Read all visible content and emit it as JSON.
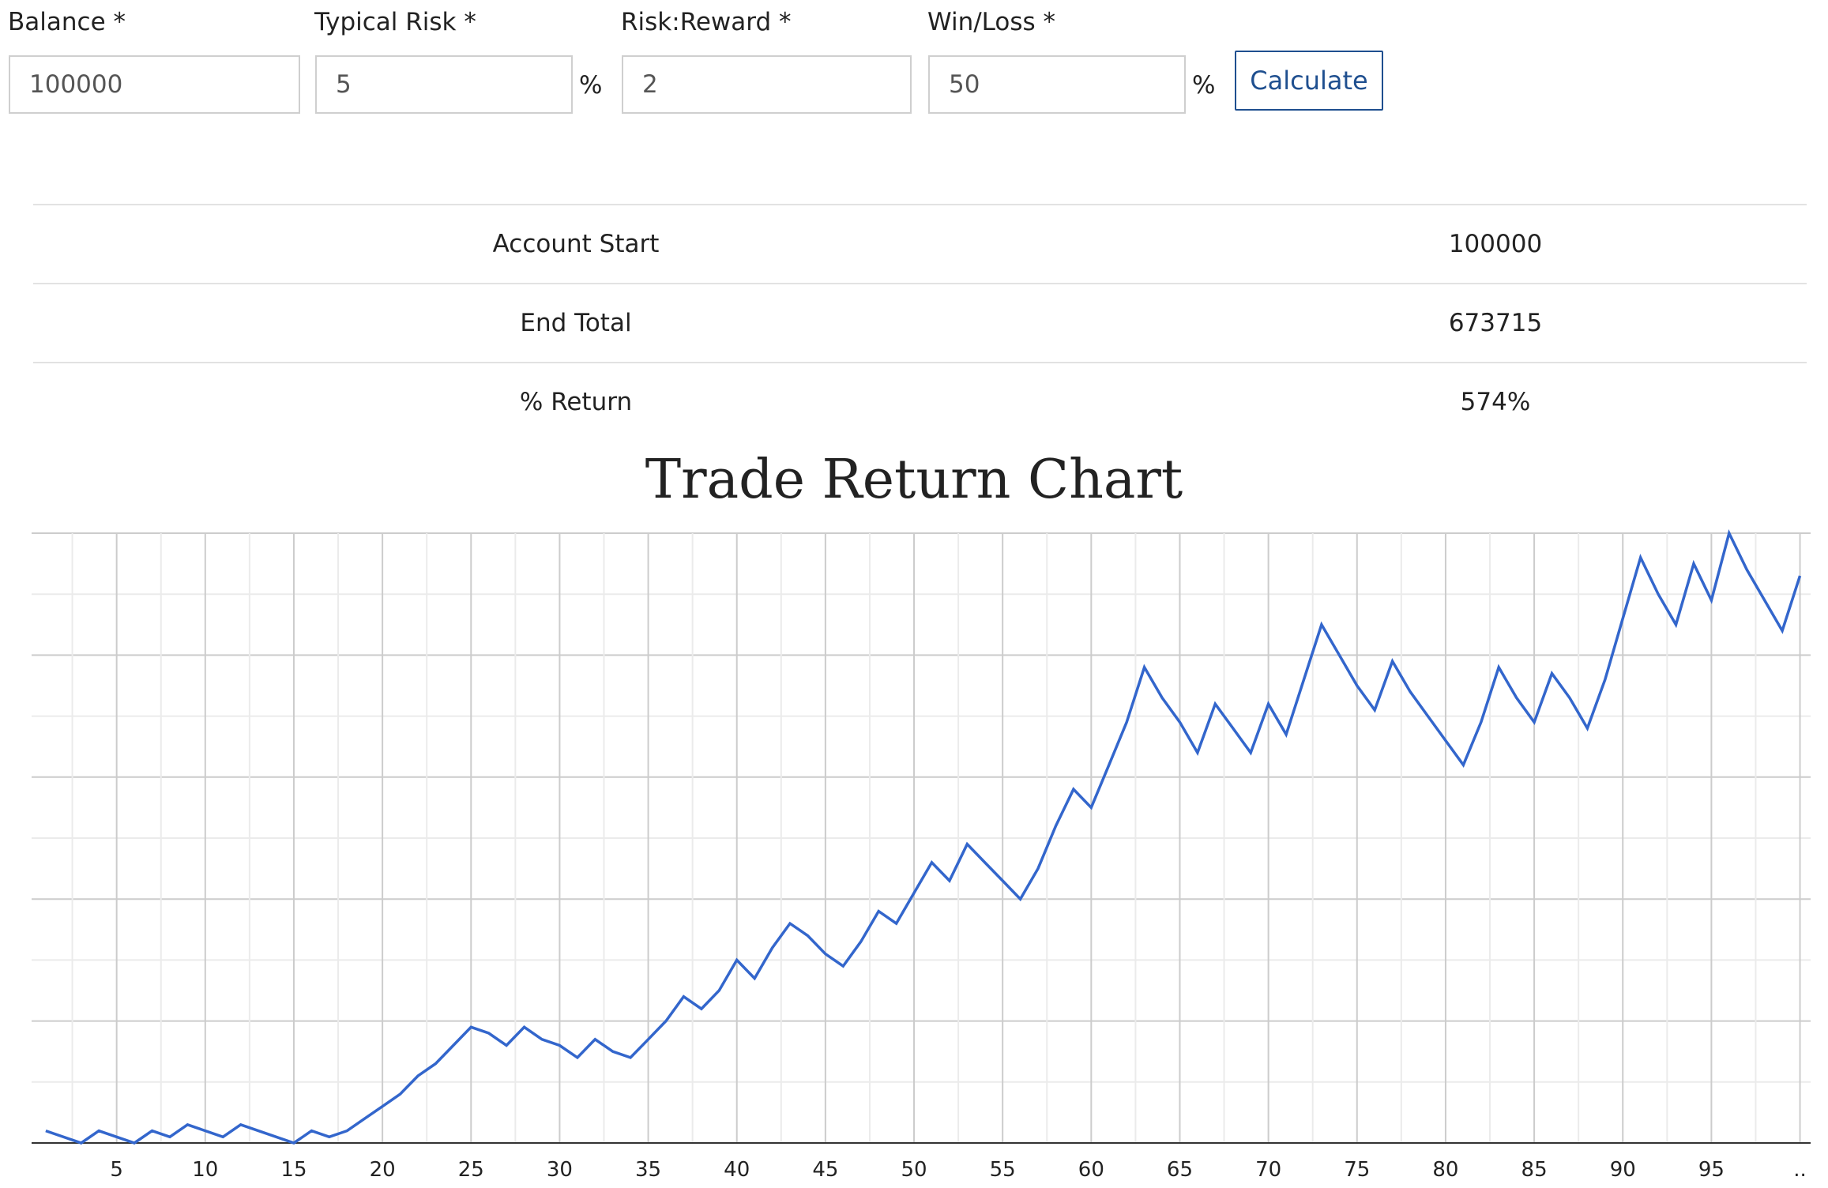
{
  "form": {
    "balance": {
      "label": "Balance *",
      "value": "100000"
    },
    "typical_risk": {
      "label": "Typical Risk *",
      "value": "5",
      "unit": "%"
    },
    "risk_reward": {
      "label": "Risk:Reward *",
      "value": "2"
    },
    "win_loss": {
      "label": "Win/Loss *",
      "value": "50",
      "unit": "%"
    },
    "calculate_label": "Calculate"
  },
  "results": [
    {
      "label": "Account Start",
      "value": "100000"
    },
    {
      "label": "End Total",
      "value": "673715"
    },
    {
      "label": "% Return",
      "value": "574%"
    }
  ],
  "chart_title": "Trade Return Chart",
  "colors": {
    "line": "#3366cc",
    "button_border": "#1f4f8f",
    "grid_major": "#cccccc",
    "grid_minor": "#ebebeb"
  },
  "chart_data": {
    "type": "line",
    "title": "Trade Return Chart",
    "xlabel": "",
    "ylabel": "",
    "x_tick_labels": [
      "5",
      "10",
      "15",
      "20",
      "25",
      "30",
      "35",
      "40",
      "45",
      "50",
      "55",
      "60",
      "65",
      "70",
      "75",
      "80",
      "85",
      "90",
      "95",
      ".."
    ],
    "x_ticks": [
      5,
      10,
      15,
      20,
      25,
      30,
      35,
      40,
      45,
      50,
      55,
      60,
      65,
      70,
      75,
      80,
      85,
      90,
      95,
      100
    ],
    "xlim": [
      0.2,
      100.6
    ],
    "ylim": [
      0,
      100
    ],
    "y_tick_labels": [],
    "grid": true,
    "series": [
      {
        "x": [
          1,
          3,
          4,
          6,
          7,
          8,
          9,
          11,
          12,
          15,
          16,
          17,
          18,
          19,
          20,
          21,
          22,
          23,
          24,
          25,
          26,
          27,
          28,
          29,
          30,
          31,
          32,
          33,
          34,
          35,
          36,
          37,
          38,
          39,
          40,
          41,
          42,
          43,
          44,
          45,
          46,
          47,
          48,
          49,
          50,
          51,
          52,
          53,
          54,
          55,
          56,
          57,
          58,
          59,
          60,
          61,
          62,
          63,
          64,
          65,
          66,
          67,
          68,
          69,
          70,
          71,
          72,
          73,
          74,
          75,
          76,
          77,
          78,
          79,
          80,
          81,
          82,
          83,
          84,
          85,
          86,
          87,
          88,
          89,
          90,
          91,
          92,
          93,
          94,
          95,
          96,
          97,
          98,
          99,
          100
        ],
        "y": [
          2,
          0,
          2,
          0,
          2,
          1,
          3,
          1,
          3,
          0,
          2,
          1,
          2,
          4,
          6,
          8,
          11,
          13,
          16,
          19,
          18,
          16,
          19,
          17,
          16,
          14,
          17,
          15,
          14,
          17,
          20,
          24,
          22,
          25,
          30,
          27,
          32,
          36,
          34,
          31,
          29,
          33,
          38,
          36,
          41,
          46,
          43,
          49,
          46,
          43,
          40,
          45,
          52,
          58,
          55,
          62,
          69,
          78,
          73,
          69,
          64,
          72,
          68,
          64,
          72,
          67,
          76,
          85,
          80,
          75,
          71,
          79,
          74,
          70,
          66,
          62,
          69,
          78,
          73,
          69,
          77,
          73,
          68,
          76,
          86,
          96,
          90,
          85,
          95,
          89,
          100,
          94,
          89,
          84,
          93
        ]
      }
    ]
  }
}
